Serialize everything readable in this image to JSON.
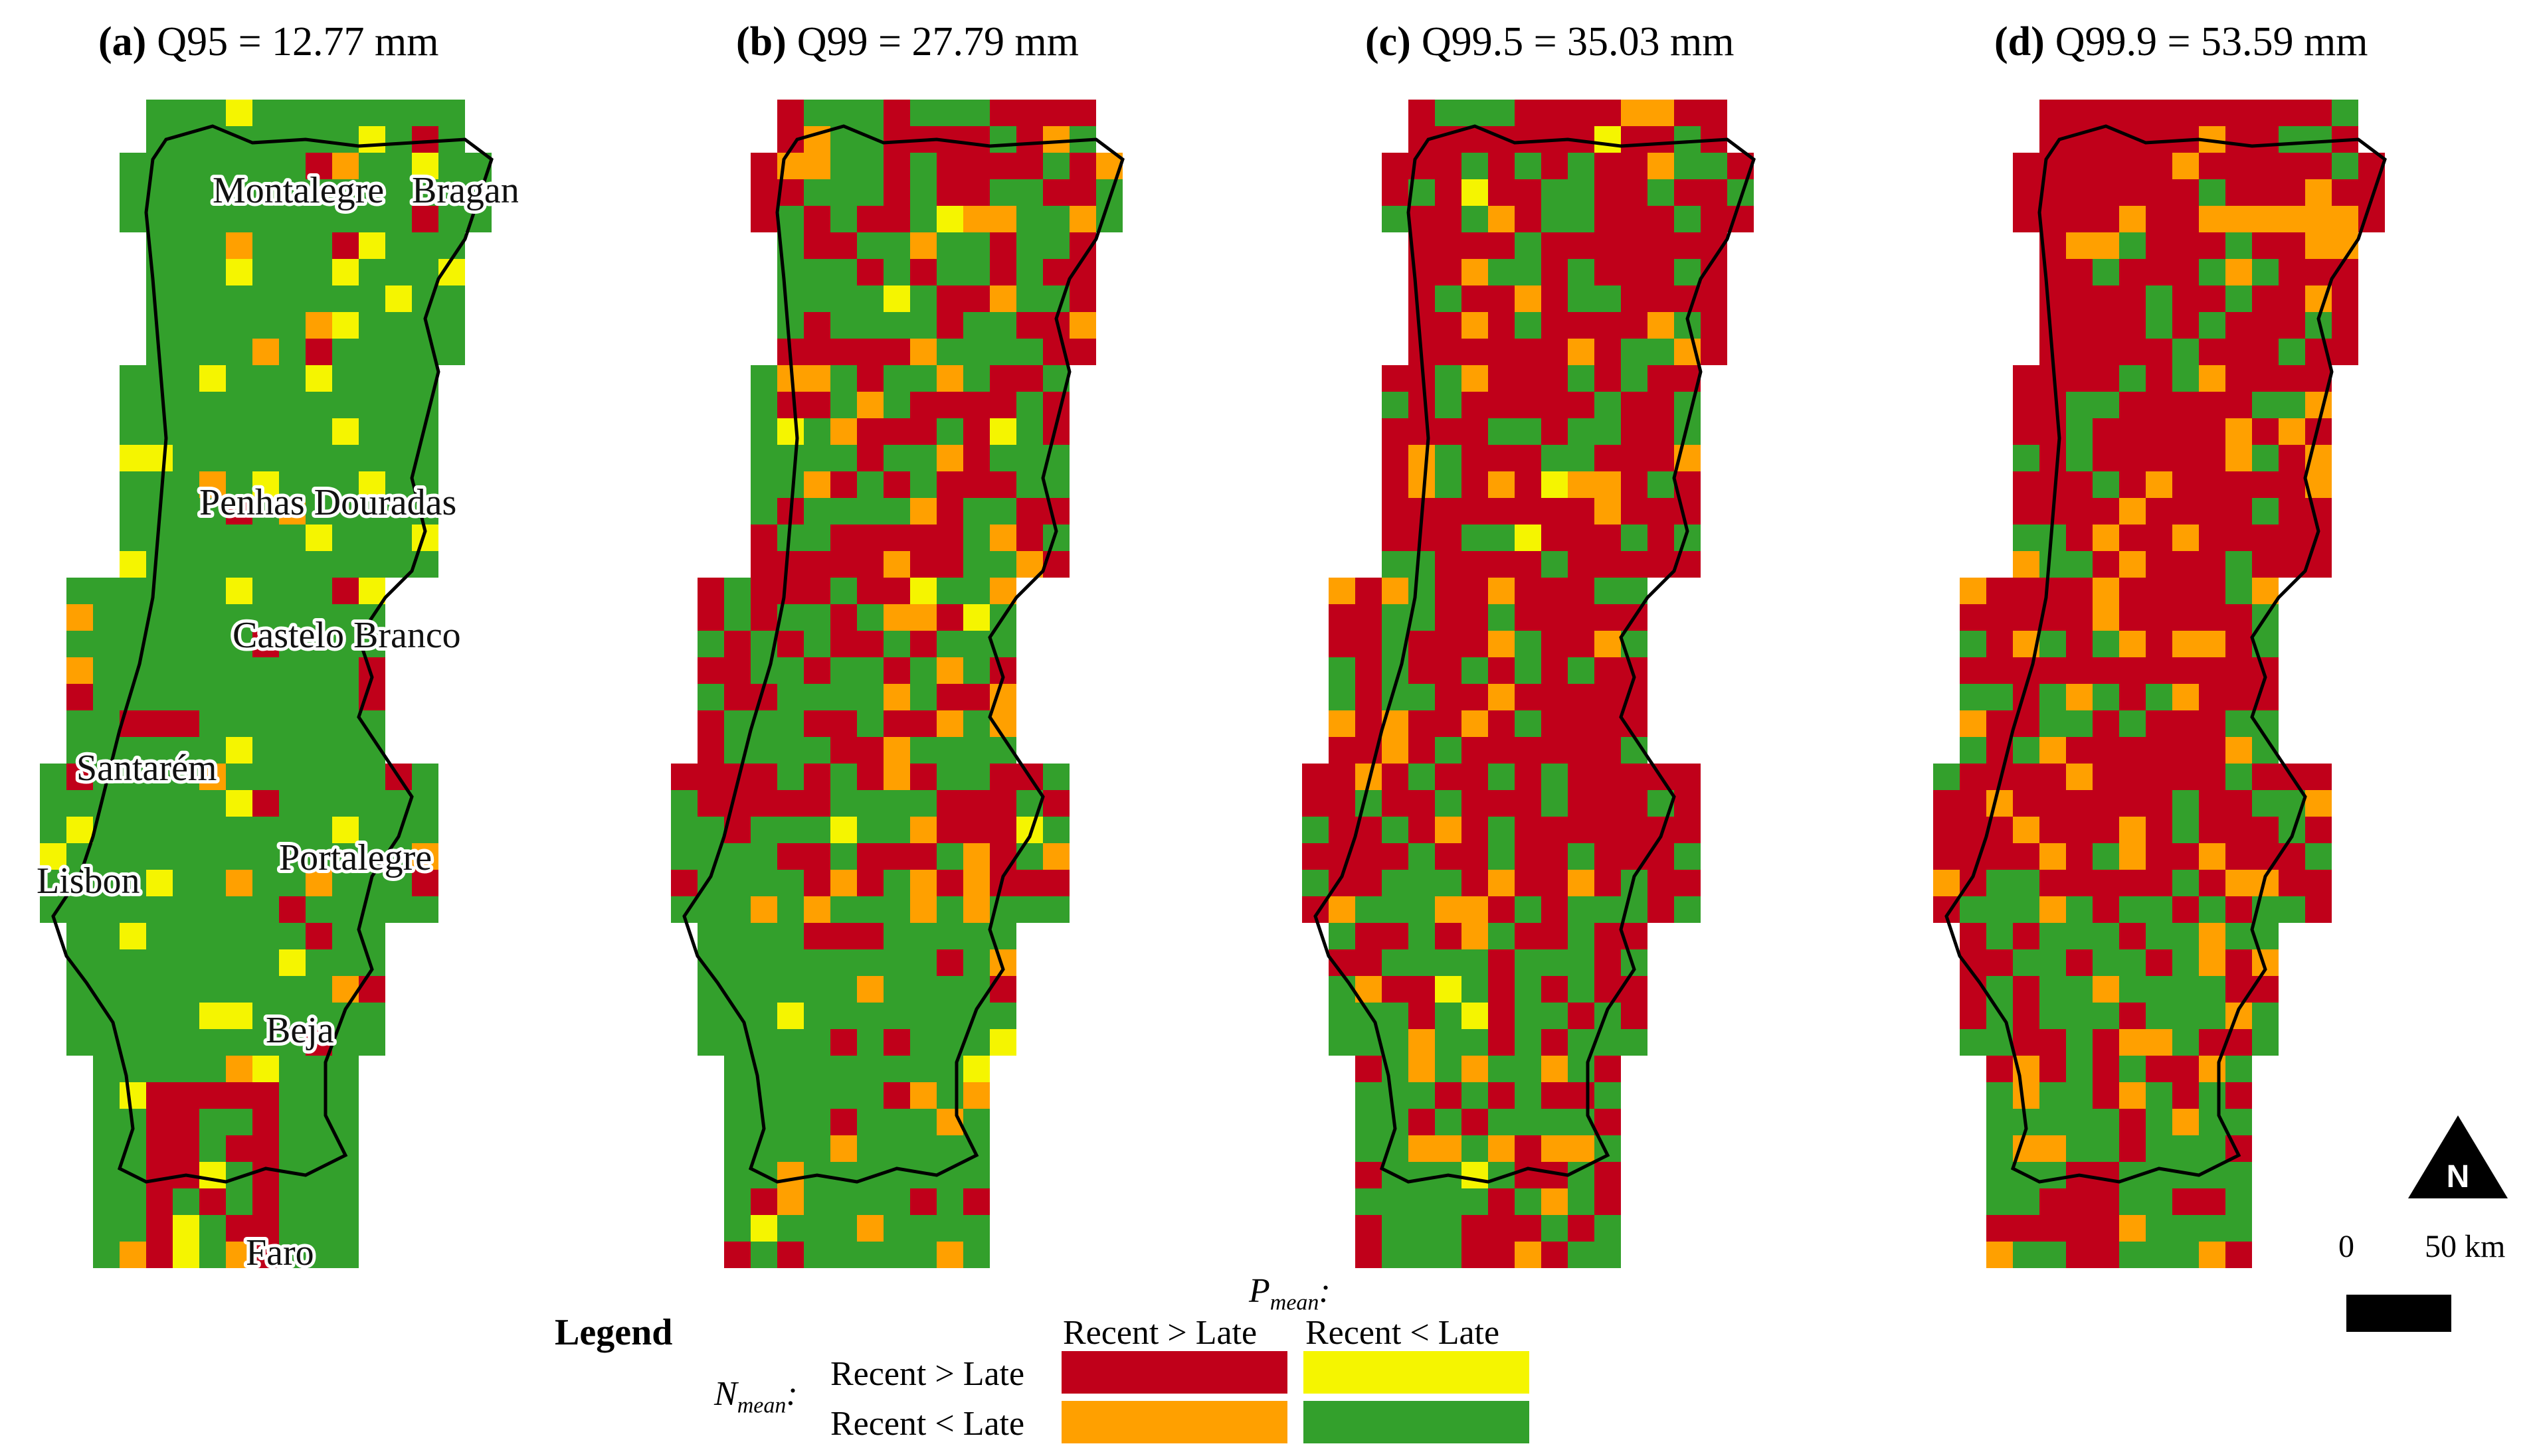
{
  "colors": {
    "red": "#c0001a",
    "yellow": "#f5f500",
    "orange": "#ffa000",
    "green": "#33a02c",
    "outline": "#000000"
  },
  "panels": [
    {
      "id": "a",
      "letter": "(a)",
      "title": "Q95 = 12.77 mm",
      "threshold_mm": 12.77
    },
    {
      "id": "b",
      "letter": "(b)",
      "title": "Q99 = 27.79 mm",
      "threshold_mm": 27.79
    },
    {
      "id": "c",
      "letter": "(c)",
      "title": "Q99.5 = 35.03 mm",
      "threshold_mm": 35.03
    },
    {
      "id": "d",
      "letter": "(d)",
      "title": "Q99.9 = 53.59 mm",
      "threshold_mm": 53.59
    }
  ],
  "cities": [
    "Montalegre",
    "Bragança",
    "Penhas Douradas",
    "Castelo Branco",
    "Santarém",
    "Portalegre",
    "Lisbon",
    "Beja",
    "Faro"
  ],
  "legend": {
    "title": "Legend",
    "pmean_main": "P",
    "pmean_sub": "mean",
    "pmean_colon": ":",
    "nmean_main": "N",
    "nmean_sub": "mean",
    "nmean_colon": ":",
    "col1": "Recent > Late",
    "col2": "Recent < Late",
    "row1": "Recent > Late",
    "row2": "Recent < Late",
    "cells": {
      "recent_gt_late_both": "red",
      "nmean_gt_pmean_lt": "yellow",
      "nmean_lt_pmean_gt": "orange",
      "recent_lt_late_both": "green"
    }
  },
  "north_arrow": "N",
  "scale": {
    "start": "0",
    "end": "50 km"
  }
}
